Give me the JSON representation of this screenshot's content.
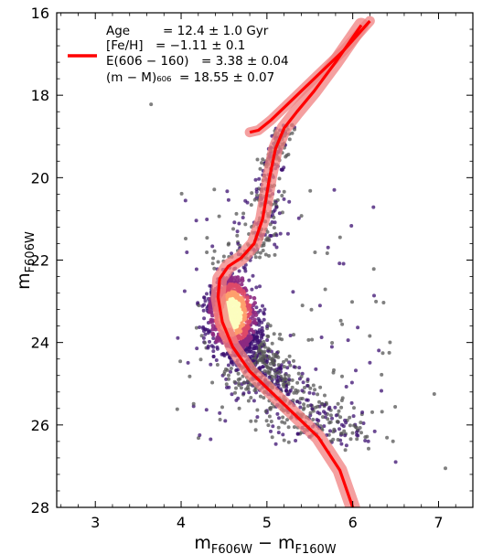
{
  "chart_data": {
    "type": "scatter",
    "title": "",
    "xlabel": {
      "main": "m",
      "sub1": "F606W",
      "minus": " − m",
      "sub2": "F160W"
    },
    "ylabel": {
      "main": "m",
      "sub": "F606W"
    },
    "xlim": [
      2.55,
      7.4
    ],
    "ylim": [
      28,
      16
    ],
    "y_inverted": true,
    "x_ticks": [
      "3",
      "4",
      "5",
      "6",
      "7"
    ],
    "y_ticks": [
      "16",
      "18",
      "20",
      "22",
      "24",
      "26",
      "28"
    ],
    "legend": {
      "placement": "top-left",
      "line_color": "#ff0000",
      "lines": [
        {
          "label": "Age",
          "value": "= 12.4 ± 1.0 Gyr"
        },
        {
          "label": "[Fe/H]",
          "value": "= −1.11 ± 0.1"
        },
        {
          "label": "E(606 − 160)",
          "value": "= 3.38 ± 0.04"
        },
        {
          "label": "(m − M)₆₀₆",
          "value": "= 18.55 ± 0.07"
        }
      ]
    },
    "series": [
      {
        "kind": "isochrone",
        "color": "#ff0000",
        "band_color": "#f08080",
        "x": [
          6.0,
          5.85,
          5.6,
          5.35,
          5.05,
          4.8,
          4.6,
          4.48,
          4.43,
          4.45,
          4.55,
          4.7,
          4.85,
          4.95,
          5.03,
          5.1,
          5.2,
          5.35,
          5.55,
          5.8,
          6.1
        ],
        "y": [
          28.0,
          27.1,
          26.3,
          25.8,
          25.2,
          24.7,
          24.1,
          23.5,
          22.9,
          22.45,
          22.15,
          21.95,
          21.6,
          21.0,
          20.0,
          19.3,
          18.8,
          18.4,
          17.9,
          17.2,
          16.3
        ]
      },
      {
        "kind": "horizontal-branch-track",
        "color": "#ff0000",
        "x": [
          4.8,
          4.9,
          5.05,
          5.3,
          5.6,
          5.9,
          6.2
        ],
        "y": [
          18.9,
          18.85,
          18.6,
          18.1,
          17.5,
          16.9,
          16.2
        ]
      }
    ],
    "scatter_description": "stellar photometry, density-colored (dark purple sparse to yellow dense)",
    "scatter_colors": [
      "#555555",
      "#3b0f70",
      "#8c2981",
      "#de4968",
      "#fe9f6d",
      "#fcfdbf"
    ]
  }
}
